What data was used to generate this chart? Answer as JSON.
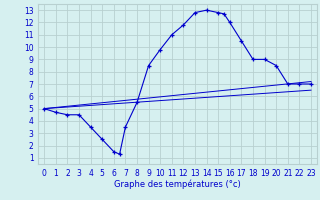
{
  "title": "Graphe des températures (°c)",
  "xlim": [
    -0.5,
    23.5
  ],
  "ylim": [
    0.5,
    13.5
  ],
  "xticks": [
    0,
    1,
    2,
    3,
    4,
    5,
    6,
    7,
    8,
    9,
    10,
    11,
    12,
    13,
    14,
    15,
    16,
    17,
    18,
    19,
    20,
    21,
    22,
    23
  ],
  "yticks": [
    1,
    2,
    3,
    4,
    5,
    6,
    7,
    8,
    9,
    10,
    11,
    12,
    13
  ],
  "background_color": "#d6f0f0",
  "grid_color": "#b8d0d0",
  "line_color": "#0000cc",
  "line1_x": [
    0,
    1,
    2,
    3,
    4,
    5,
    6,
    6.5,
    7,
    8,
    9,
    10,
    11,
    12,
    13,
    14,
    15,
    15.5,
    16,
    17,
    18,
    19,
    20,
    21,
    22,
    23
  ],
  "line1_y": [
    5.0,
    4.7,
    4.5,
    4.5,
    3.5,
    2.5,
    1.5,
    1.3,
    3.5,
    5.5,
    8.5,
    9.8,
    11,
    11.8,
    12.8,
    13,
    12.8,
    12.7,
    12,
    10.5,
    9.0,
    9.0,
    8.5,
    7.0,
    7.0,
    7.0
  ],
  "line2_x": [
    0,
    23
  ],
  "line2_y": [
    5.0,
    7.2
  ],
  "line3_x": [
    0,
    23
  ],
  "line3_y": [
    5.0,
    6.5
  ],
  "fontsize_label": 6,
  "fontsize_tick": 5.5
}
